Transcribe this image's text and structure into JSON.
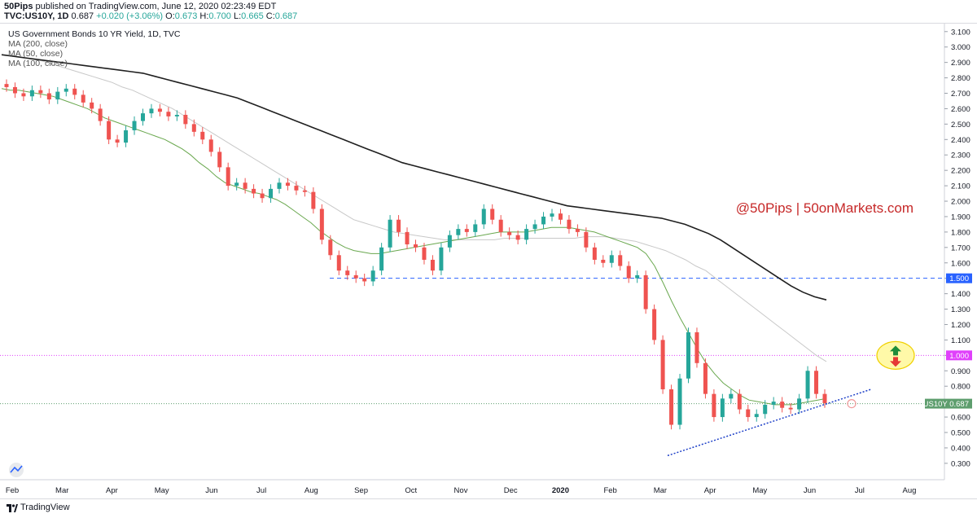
{
  "header": {
    "publisher": "50Pips",
    "published_text": "published on TradingView.com, June 12, 2020 02:23:49 EDT",
    "symbol": "TVC:US10Y, 1D",
    "last": "0.687",
    "change": "+0.020 (+3.06%)",
    "ohlc_o_label": "O:",
    "ohlc_o": "0.673",
    "ohlc_h_label": "H:",
    "ohlc_h": "0.700",
    "ohlc_l_label": "L:",
    "ohlc_l": "0.665",
    "ohlc_c_label": "C:",
    "ohlc_c": "0.687"
  },
  "legend": {
    "title": "US Government Bonds 10 YR Yield, 1D, TVC",
    "ma200": "MA (200, close)",
    "ma50": "MA (50, close)",
    "ma100": "MA (100, close)"
  },
  "watermark": "@50Pips | 50onMarkets.com",
  "footer": {
    "brand": "TradingView"
  },
  "colors": {
    "up": "#26a69a",
    "down": "#ef5350",
    "ma200": "#1f1f1f",
    "ma50": "#6aa84f",
    "ma100": "#c8c8c8",
    "level_1500": "#2962ff",
    "level_1000": "#e040fb",
    "price_line": "#5e9e6e",
    "watermark": "#c62828"
  },
  "chart_data": {
    "type": "candlestick",
    "title": "US Government Bonds 10 YR Yield, 1D, TVC",
    "x_ticks": [
      "Feb",
      "Mar",
      "Apr",
      "May",
      "Jun",
      "Jul",
      "Aug",
      "Sep",
      "Oct",
      "Nov",
      "Dec",
      "2020",
      "Feb",
      "Mar",
      "Apr",
      "May",
      "Jun",
      "Jul",
      "Aug"
    ],
    "y_ticks": [
      "3.100",
      "3.000",
      "2.900",
      "2.800",
      "2.700",
      "2.600",
      "2.500",
      "2.400",
      "2.300",
      "2.200",
      "2.100",
      "2.000",
      "1.900",
      "1.800",
      "1.700",
      "1.600",
      "1.500",
      "1.400",
      "1.300",
      "1.200",
      "1.100",
      "1.000",
      "0.900",
      "0.800",
      "0.700",
      "0.600",
      "0.500",
      "0.400",
      "0.300"
    ],
    "ylim": [
      0.22,
      3.12
    ],
    "price_close": [
      2.74,
      2.7,
      2.68,
      2.72,
      2.7,
      2.66,
      2.71,
      2.73,
      2.69,
      2.64,
      2.6,
      2.52,
      2.4,
      2.38,
      2.46,
      2.52,
      2.57,
      2.6,
      2.58,
      2.55,
      2.56,
      2.5,
      2.45,
      2.4,
      2.32,
      2.22,
      2.1,
      2.12,
      2.08,
      2.05,
      2.02,
      2.08,
      2.12,
      2.1,
      2.07,
      2.06,
      1.95,
      1.75,
      1.65,
      1.55,
      1.52,
      1.5,
      1.48,
      1.55,
      1.7,
      1.88,
      1.8,
      1.72,
      1.7,
      1.62,
      1.55,
      1.7,
      1.78,
      1.82,
      1.8,
      1.85,
      1.95,
      1.88,
      1.8,
      1.78,
      1.75,
      1.82,
      1.85,
      1.9,
      1.92,
      1.88,
      1.82,
      1.8,
      1.7,
      1.62,
      1.6,
      1.65,
      1.58,
      1.5,
      1.52,
      1.3,
      1.1,
      0.78,
      0.55,
      0.85,
      1.15,
      0.95,
      0.75,
      0.6,
      0.72,
      0.75,
      0.65,
      0.6,
      0.62,
      0.68,
      0.7,
      0.66,
      0.65,
      0.72,
      0.9,
      0.75,
      0.69
    ],
    "ma50": [
      2.73,
      2.72,
      2.72,
      2.71,
      2.7,
      2.69,
      2.68,
      2.66,
      2.64,
      2.62,
      2.6,
      2.57,
      2.54,
      2.52,
      2.5,
      2.48,
      2.46,
      2.44,
      2.42,
      2.4,
      2.37,
      2.34,
      2.3,
      2.25,
      2.21,
      2.16,
      2.12,
      2.1,
      2.08,
      2.06,
      2.05,
      2.03,
      2.01,
      1.98,
      1.94,
      1.9,
      1.86,
      1.81,
      1.77,
      1.73,
      1.7,
      1.68,
      1.67,
      1.66,
      1.66,
      1.67,
      1.68,
      1.69,
      1.7,
      1.71,
      1.72,
      1.73,
      1.74,
      1.75,
      1.76,
      1.77,
      1.78,
      1.79,
      1.8,
      1.8,
      1.8,
      1.8,
      1.81,
      1.82,
      1.83,
      1.83,
      1.83,
      1.82,
      1.81,
      1.8,
      1.78,
      1.76,
      1.74,
      1.72,
      1.7,
      1.66,
      1.58,
      1.47,
      1.35,
      1.24,
      1.14,
      1.04,
      0.95,
      0.88,
      0.82,
      0.78,
      0.74,
      0.71,
      0.7,
      0.69,
      0.68,
      0.68,
      0.68,
      0.69,
      0.7,
      0.71,
      0.72
    ],
    "ma100": [
      2.95,
      2.94,
      2.93,
      2.92,
      2.91,
      2.89,
      2.87,
      2.85,
      2.83,
      2.81,
      2.79,
      2.77,
      2.74,
      2.72,
      2.69,
      2.66,
      2.63,
      2.6,
      2.56,
      2.52,
      2.48,
      2.44,
      2.4,
      2.36,
      2.32,
      2.28,
      2.24,
      2.2,
      2.16,
      2.12,
      2.08,
      2.04,
      2.0,
      1.96,
      1.92,
      1.88,
      1.86,
      1.84,
      1.82,
      1.8,
      1.79,
      1.78,
      1.77,
      1.76,
      1.75,
      1.75,
      1.75,
      1.75,
      1.75,
      1.75,
      1.76,
      1.76,
      1.76,
      1.76,
      1.76,
      1.76,
      1.76,
      1.76,
      1.77,
      1.77,
      1.77,
      1.76,
      1.75,
      1.74,
      1.72,
      1.7,
      1.68,
      1.65,
      1.62,
      1.58,
      1.55,
      1.5,
      1.45,
      1.4,
      1.35,
      1.3,
      1.25,
      1.2,
      1.15,
      1.1,
      1.05,
      1.0,
      0.96
    ],
    "ma200": [
      2.95,
      2.94,
      2.93,
      2.92,
      2.91,
      2.9,
      2.89,
      2.88,
      2.87,
      2.86,
      2.85,
      2.84,
      2.83,
      2.81,
      2.79,
      2.77,
      2.75,
      2.73,
      2.71,
      2.69,
      2.67,
      2.64,
      2.61,
      2.58,
      2.55,
      2.52,
      2.49,
      2.46,
      2.43,
      2.4,
      2.37,
      2.34,
      2.31,
      2.28,
      2.25,
      2.23,
      2.21,
      2.19,
      2.17,
      2.15,
      2.13,
      2.11,
      2.09,
      2.07,
      2.05,
      2.03,
      2.01,
      1.99,
      1.97,
      1.96,
      1.95,
      1.94,
      1.93,
      1.92,
      1.91,
      1.9,
      1.89,
      1.87,
      1.85,
      1.82,
      1.79,
      1.75,
      1.7,
      1.65,
      1.6,
      1.55,
      1.5,
      1.45,
      1.41,
      1.38,
      1.36
    ],
    "levels": {
      "support": 1.5,
      "resistance": 1.0,
      "last": 0.687
    },
    "level_labels": {
      "support": "1.500",
      "resistance": "1.000",
      "last": "US10Y  0.687"
    }
  }
}
